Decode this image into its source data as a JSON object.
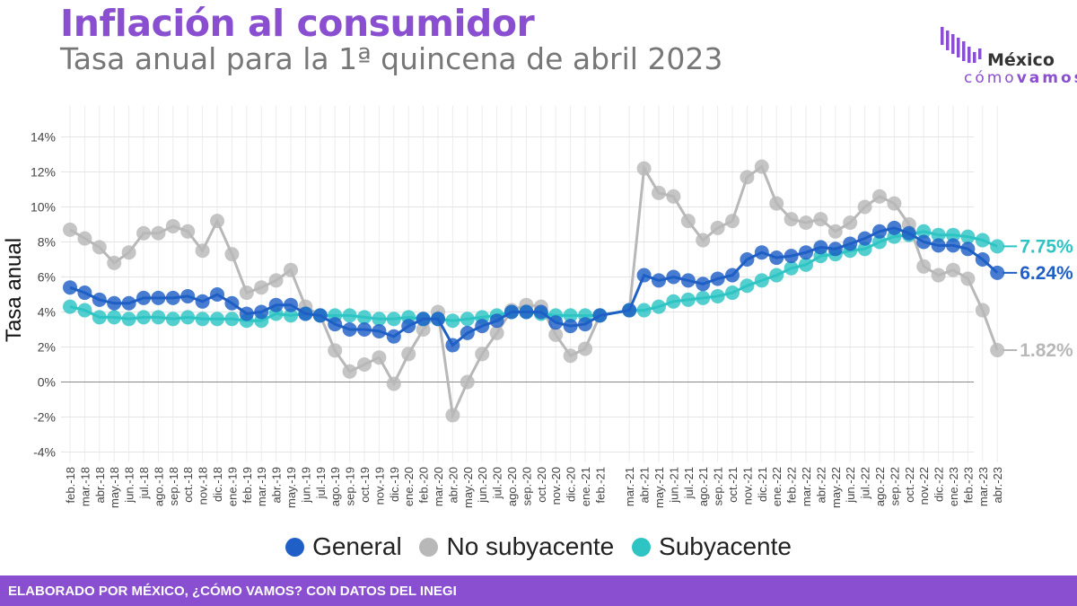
{
  "header": {
    "title": "Inflación al consumidor",
    "subtitle": "Tasa anual para la 1ª quincena de abril 2023"
  },
  "logo": {
    "word1": "México",
    "word2a": "cómo",
    "word2b": "vamos",
    "color": "#8a4fd0"
  },
  "footer": {
    "text": "ELABORADO POR MÉXICO, ¿CÓMO VAMOS? CON DATOS DEL INEGI",
    "color": "#8a4fd0"
  },
  "chart_data": {
    "type": "line",
    "title": "",
    "ylabel": "Tasa anual",
    "xlabel": "",
    "ylim": [
      -4,
      14
    ],
    "yticks": [
      -4,
      -2,
      0,
      2,
      4,
      6,
      8,
      10,
      12,
      14
    ],
    "ytick_suffix": "%",
    "grid": true,
    "legend_position": "bottom",
    "categories": [
      "feb.-18",
      "mar.-18",
      "abr.-18",
      "may.-18",
      "jun.-18",
      "jul.-18",
      "ago.-18",
      "sep.-18",
      "oct.-18",
      "nov.-18",
      "dic.-18",
      "ene.-19",
      "feb.-19",
      "mar.-19",
      "abr.-19",
      "may.-19",
      "jun.-19",
      "jul.-19",
      "ago.-19",
      "sep.-19",
      "oct.-19",
      "nov.-19",
      "dic.-19",
      "ene.-20",
      "feb.-20",
      "mar.-20",
      "abr.-20",
      "may.-20",
      "jun.-20",
      "jul.-20",
      "ago.-20",
      "sep.-20",
      "oct.-20",
      "nov.-20",
      "dic.-20",
      "ene.-21",
      "feb.-21",
      "mar.-21",
      "abr.-21",
      "may.-21",
      "jun.-21",
      "jul.-21",
      "ago.-21",
      "sep.-21",
      "oct.-21",
      "nov.-21",
      "dic.-21",
      "ene.-22",
      "feb.-22",
      "mar.-22",
      "abr.-22",
      "may.-22",
      "jun.-22",
      "jul.-22",
      "ago.-22",
      "sep.-22",
      "oct.-22",
      "nov.-22",
      "dic.-22",
      "ene.-23",
      "feb.-23",
      "mar.-23",
      "abr.-23"
    ],
    "x_positions": [
      0,
      1,
      2,
      3,
      4,
      5,
      6,
      7,
      8,
      9,
      10,
      11,
      12,
      13,
      14,
      15,
      16,
      17,
      18,
      19,
      20,
      21,
      22,
      23,
      24,
      25,
      26,
      27,
      28,
      29,
      30,
      31,
      32,
      33,
      34,
      35,
      36,
      38,
      39,
      40,
      41,
      42,
      43,
      44,
      45,
      46,
      47,
      48,
      49,
      50,
      51,
      52,
      53,
      54,
      55,
      56,
      57,
      58,
      59,
      60,
      61,
      62,
      63
    ],
    "series": [
      {
        "name": "No subyacente",
        "color": "#b8b8b8",
        "values": [
          8.7,
          8.2,
          7.7,
          6.8,
          7.4,
          8.5,
          8.5,
          8.9,
          8.6,
          7.5,
          9.2,
          7.3,
          5.1,
          5.4,
          5.8,
          6.4,
          4.3,
          3.8,
          1.8,
          0.6,
          1.0,
          1.4,
          -0.1,
          1.6,
          3.0,
          4.0,
          -1.9,
          0.0,
          1.6,
          2.8,
          4.1,
          4.4,
          4.3,
          2.7,
          1.5,
          1.9,
          3.8,
          4.1,
          12.2,
          10.8,
          10.6,
          9.2,
          8.1,
          8.8,
          9.2,
          11.7,
          12.3,
          10.2,
          9.3,
          9.1,
          9.3,
          8.6,
          9.1,
          10.0,
          10.6,
          10.2,
          9.0,
          6.6,
          6.1,
          6.4,
          5.9,
          4.1,
          1.82
        ],
        "end_label": "1.82%"
      },
      {
        "name": "Subyacente",
        "color": "#2ec4c4",
        "values": [
          4.3,
          4.1,
          3.7,
          3.7,
          3.6,
          3.7,
          3.7,
          3.6,
          3.7,
          3.6,
          3.6,
          3.6,
          3.5,
          3.5,
          3.9,
          3.8,
          3.9,
          3.8,
          3.8,
          3.8,
          3.7,
          3.6,
          3.6,
          3.7,
          3.6,
          3.6,
          3.5,
          3.6,
          3.7,
          3.8,
          4.0,
          4.0,
          3.9,
          3.8,
          3.8,
          3.8,
          3.8,
          4.1,
          4.1,
          4.3,
          4.6,
          4.7,
          4.8,
          4.9,
          5.1,
          5.5,
          5.8,
          6.1,
          6.5,
          6.7,
          7.2,
          7.3,
          7.5,
          7.6,
          8.0,
          8.3,
          8.4,
          8.6,
          8.4,
          8.4,
          8.3,
          8.1,
          7.75
        ],
        "end_label": "7.75%"
      },
      {
        "name": "General",
        "color": "#1f5fc6",
        "values": [
          5.4,
          5.1,
          4.7,
          4.5,
          4.5,
          4.8,
          4.8,
          4.8,
          4.9,
          4.6,
          5.0,
          4.5,
          3.9,
          4.0,
          4.4,
          4.4,
          3.9,
          3.8,
          3.3,
          3.0,
          3.0,
          2.9,
          2.6,
          3.2,
          3.6,
          3.6,
          2.1,
          2.8,
          3.2,
          3.5,
          4.0,
          4.0,
          4.0,
          3.4,
          3.2,
          3.3,
          3.8,
          4.1,
          6.1,
          5.8,
          6.0,
          5.8,
          5.6,
          5.9,
          6.1,
          7.0,
          7.4,
          7.1,
          7.2,
          7.4,
          7.7,
          7.6,
          7.9,
          8.2,
          8.6,
          8.8,
          8.5,
          8.0,
          7.8,
          7.8,
          7.6,
          7.0,
          6.24
        ],
        "end_label": "6.24%"
      }
    ],
    "legend": [
      "General",
      "No subyacente",
      "Subyacente"
    ]
  }
}
